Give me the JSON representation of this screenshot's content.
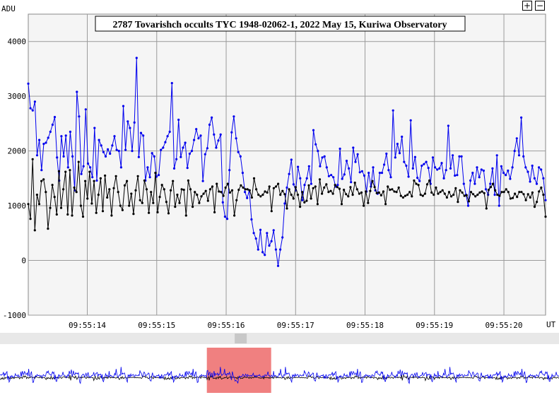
{
  "chart_data": {
    "type": "line",
    "title": "2787 Tovarishch occults TYC 1948-02062-1, 2022 May 15, Kuriwa Observatory",
    "ylabel": "ADU",
    "xlabel": "UT",
    "ylim": [
      -1000,
      4500
    ],
    "yticks": [
      -1000,
      0,
      1000,
      2000,
      3000,
      4000
    ],
    "xlim": [
      0,
      7.45
    ],
    "xticks": [
      {
        "x": 0.85,
        "label": "09:55:14"
      },
      {
        "x": 1.85,
        "label": "09:55:15"
      },
      {
        "x": 2.85,
        "label": "09:55:16"
      },
      {
        "x": 3.85,
        "label": "09:55:17"
      },
      {
        "x": 4.85,
        "label": "09:55:18"
      },
      {
        "x": 5.85,
        "label": "09:55:19"
      },
      {
        "x": 6.85,
        "label": "09:55:20"
      }
    ],
    "grid": true,
    "series": [
      {
        "color": "#0000ee",
        "values": [
          3230,
          2780,
          2740,
          2900,
          1920,
          2200,
          1650,
          2130,
          2150,
          2240,
          2350,
          2480,
          2620,
          1880,
          1460,
          2270,
          1900,
          2280,
          1700,
          2350,
          1900,
          1280,
          3080,
          2630,
          1580,
          1720,
          2760,
          1770,
          1700,
          1520,
          2420,
          1460,
          2200,
          2100,
          1980,
          1900,
          2030,
          1950,
          2100,
          2270,
          2020,
          2000,
          1700,
          2820,
          2020,
          2540,
          2420,
          2000,
          2520,
          3700,
          1890,
          2330,
          2280,
          1460,
          1700,
          1520,
          1960,
          1900,
          1530,
          1560,
          2020,
          2060,
          2160,
          2270,
          2350,
          3240,
          1680,
          1850,
          2570,
          1890,
          2060,
          2150,
          1690,
          1950,
          2000,
          2200,
          2400,
          2230,
          2280,
          1450,
          1940,
          2050,
          2480,
          2610,
          2300,
          2060,
          2190,
          2300,
          1060,
          800,
          760,
          1650,
          2340,
          2630,
          2230,
          1980,
          1900,
          1600,
          1250,
          1140,
          1280,
          750,
          500,
          400,
          200,
          560,
          150,
          100,
          500,
          270,
          350,
          550,
          200,
          -100,
          200,
          420,
          1040,
          1330,
          1580,
          1840,
          1390,
          1280,
          1710,
          1500,
          1100,
          1380,
          1500,
          1720,
          1400,
          2380,
          2120,
          2000,
          1720,
          1880,
          1900,
          1700,
          1540,
          1560,
          1520,
          1350,
          1380,
          2040,
          1490,
          1570,
          1820,
          1680,
          1430,
          2060,
          1800,
          1940,
          1610,
          1630,
          1550,
          1260,
          1600,
          1350,
          1700,
          1280,
          1220,
          1600,
          1600,
          1750,
          1950,
          1650,
          1520,
          2740,
          1880,
          2130,
          1960,
          2260,
          1800,
          1730,
          1530,
          2560,
          1680,
          1890,
          1510,
          1450,
          1730,
          1760,
          1800,
          1690,
          1400,
          1880,
          1700,
          1660,
          1680,
          1780,
          1500,
          1650,
          2460,
          1680,
          1920,
          1550,
          1560,
          1900,
          1900,
          1400,
          1200,
          1000,
          1460,
          1600,
          1400,
          1700,
          1520,
          1660,
          1640,
          1300,
          1200,
          1400,
          1680,
          1200,
          1920,
          1000,
          1720,
          1600,
          1560,
          1640,
          1490,
          1700,
          2000,
          2230,
          1920,
          2610,
          1900,
          1700,
          1620,
          1440,
          1730,
          1500,
          1400,
          1700,
          1660,
          1500,
          1100
        ]
      },
      {
        "color": "#000000",
        "values": [
          1030,
          760,
          1850,
          550,
          1200,
          1030,
          1450,
          1480,
          1250,
          580,
          960,
          1380,
          1160,
          840,
          1630,
          960,
          1300,
          1620,
          840,
          1650,
          820,
          1330,
          1250,
          1800,
          1000,
          800,
          1450,
          1130,
          1620,
          1040,
          1450,
          870,
          1200,
          1500,
          900,
          1550,
          1150,
          1300,
          820,
          1320,
          1540,
          1250,
          1000,
          920,
          1370,
          1450,
          1000,
          1220,
          850,
          1280,
          1540,
          1100,
          1050,
          1460,
          1300,
          870,
          1250,
          1050,
          1600,
          880,
          1160,
          1380,
          1300,
          1070,
          860,
          1280,
          1450,
          980,
          1200,
          1050,
          1300,
          1290,
          820,
          1460,
          1300,
          980,
          1250,
          1200,
          1050,
          1170,
          1220,
          1270,
          1090,
          1300,
          1350,
          880,
          1400,
          1260,
          1250,
          1180,
          1330,
          1400,
          1240,
          1280,
          820,
          1100,
          1290,
          1370,
          1330,
          1300,
          1300,
          1280,
          1150,
          1500,
          1300,
          1200,
          1170,
          1200,
          1260,
          1240,
          1350,
          900,
          1320,
          1350,
          1400,
          1200,
          1270,
          1210,
          950,
          1300,
          1200,
          1130,
          1340,
          1200,
          980,
          1250,
          1060,
          1090,
          1370,
          1130,
          1320,
          1350,
          1030,
          1480,
          1220,
          1330,
          1390,
          1250,
          1270,
          1220,
          1380,
          1340,
          1310,
          1030,
          1290,
          1210,
          1170,
          1340,
          1200,
          1420,
          1300,
          1220,
          1240,
          1000,
          1260,
          1050,
          1270,
          1450,
          1340,
          1230,
          1240,
          1190,
          1260,
          1030,
          1350,
          1290,
          1300,
          1260,
          1250,
          1330,
          1180,
          1150,
          1180,
          1200,
          1250,
          1170,
          1460,
          1400,
          1380,
          1200,
          1180,
          1220,
          1390,
          1460,
          1240,
          1200,
          1330,
          1220,
          1250,
          1280,
          1220,
          1150,
          1250,
          1170,
          1200,
          1320,
          1070,
          1280,
          1240,
          1180,
          1190,
          1080,
          1250,
          1210,
          1170,
          1200,
          1240,
          1260,
          1230,
          950,
          1290,
          1340,
          1400,
          1280,
          1200,
          1180,
          1250,
          1250,
          1300,
          1250,
          1130,
          1140,
          1220,
          1160,
          1250,
          1250,
          1210,
          1100,
          1210,
          1150,
          1240,
          980,
          1070,
          1260,
          1330,
          1200,
          800
        ]
      }
    ]
  },
  "zoom": {
    "plus": "+",
    "minus": "−"
  },
  "overview": {
    "selection_start": 0.37,
    "selection_end": 0.485,
    "thumb_position": 0.43
  },
  "colors": {
    "grid": "#9a9a9a",
    "plot_bg": "#f5f5f5",
    "selection": "#f08080",
    "scrollbar": "#e8e8e8",
    "thumb": "#c8c8c8"
  }
}
